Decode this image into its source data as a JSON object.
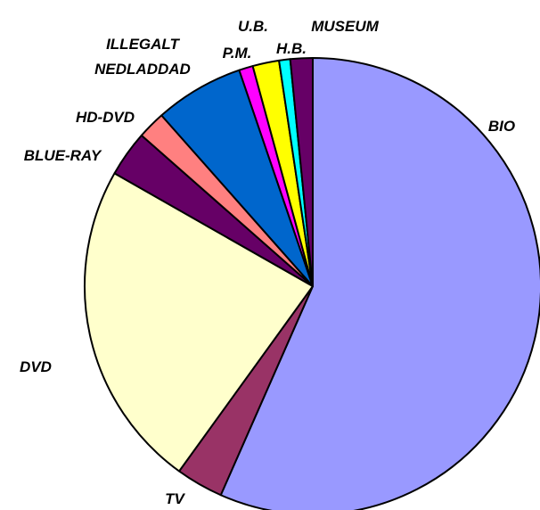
{
  "chart_data": {
    "type": "pie",
    "title": "",
    "start_angle_deg": 0,
    "direction": "clockwise",
    "slices": [
      {
        "label": "BIO",
        "value": 57.4,
        "color": "#9999ff"
      },
      {
        "label": "TV",
        "value": 3.4,
        "color": "#993366"
      },
      {
        "label": "DVD",
        "value": 23.6,
        "color": "#ffffcc"
      },
      {
        "label": "BLUE-RAY",
        "value": 3.3,
        "color": "#660066"
      },
      {
        "label": "HD-DVD",
        "value": 2.0,
        "color": "#ff8080"
      },
      {
        "label": "ILLEGALT NEDLADDAD",
        "label_lines": [
          "ILLEGALT",
          "NEDLADDAD"
        ],
        "value": 6.4,
        "color": "#0066cc"
      },
      {
        "label": "P.M.",
        "value": 1.0,
        "color": "#ff00ff"
      },
      {
        "label": "U.B.",
        "value": 1.9,
        "color": "#ffff00"
      },
      {
        "label": "H.B.",
        "value": 0.8,
        "color": "#00ffff"
      },
      {
        "label": "MUSEUM",
        "value": 1.6,
        "color": "#660066"
      }
    ]
  }
}
